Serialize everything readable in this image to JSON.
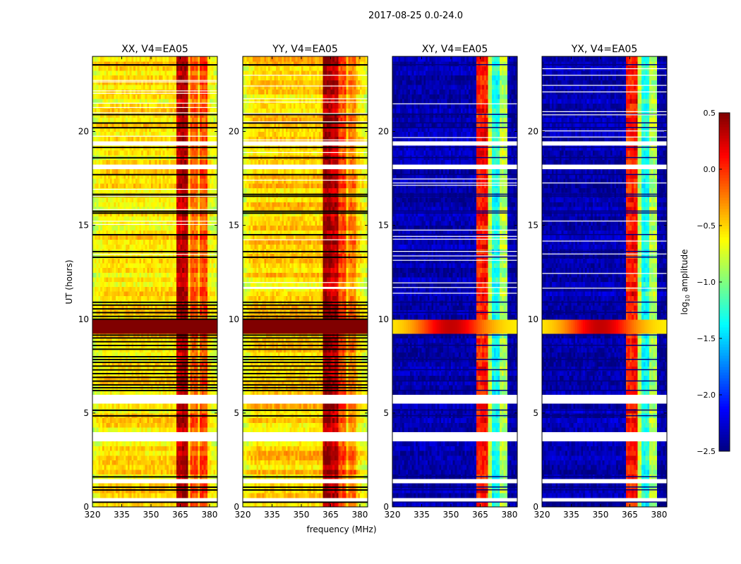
{
  "chart_data": {
    "type": "heatmap",
    "title": "2017-08-25 0.0-24.0",
    "xlabel": "frequency (MHz)",
    "ylabel": "UT (hours)",
    "xlim": [
      320,
      384
    ],
    "ylim": [
      0,
      24
    ],
    "xticks": [
      320,
      335,
      350,
      365,
      380
    ],
    "yticks": [
      0,
      5,
      10,
      15,
      20
    ],
    "colorbar": {
      "label_main": "log",
      "label_sub": "10",
      "label_rest": " amplitude",
      "range": [
        -2.5,
        0.5
      ],
      "ticks": [
        0.5,
        0.0,
        -0.5,
        -1.0,
        -1.5,
        -2.0,
        -2.5
      ],
      "tick_labels": [
        "0.5",
        "0.0",
        "−0.5",
        "−1.0",
        "−1.5",
        "−2.0",
        "−2.5"
      ],
      "colormap": "jet"
    },
    "flagged_hours_white": [
      [
        0.35,
        0.5
      ],
      [
        1.25,
        1.45
      ],
      [
        3.4,
        4.05
      ],
      [
        5.4,
        6.08
      ],
      [
        18.1,
        18.3
      ],
      [
        19.3,
        19.45
      ]
    ],
    "zero_rows_hours_black": [
      0.25,
      0.9,
      1.05,
      1.6,
      4.85,
      5.15,
      6.2,
      6.35,
      6.5,
      6.7,
      6.9,
      7.1,
      7.3,
      7.5,
      7.7,
      7.85,
      8.0,
      8.4,
      8.6,
      8.8,
      9.0,
      9.15,
      10.0,
      10.15,
      10.35,
      10.55,
      10.75,
      10.9,
      13.3,
      13.6,
      14.5,
      15.65,
      15.75,
      16.55,
      16.65,
      17.7,
      18.6,
      19.15,
      20.2,
      20.45,
      20.9,
      23.55
    ],
    "event_hours": [
      9.25,
      9.9
    ],
    "panels": [
      {
        "title": "XX, V4=EA05",
        "base": -0.55,
        "edge": -0.75,
        "bands": [
          {
            "from": 363,
            "to": 365.5,
            "value": 0.3
          },
          {
            "from": 366,
            "to": 368.5,
            "value": 0.35
          },
          {
            "from": 370,
            "to": 374,
            "value": -0.15
          },
          {
            "from": 375,
            "to": 379,
            "value": -0.1
          }
        ],
        "event_value": 0.45
      },
      {
        "title": "YY, V4=EA05",
        "base": -0.5,
        "edge": -0.75,
        "bands": [
          {
            "from": 361,
            "to": 364.5,
            "value": 0.4
          },
          {
            "from": 365,
            "to": 369,
            "value": 0.3
          },
          {
            "from": 369.5,
            "to": 373,
            "value": -0.1
          },
          {
            "from": 374,
            "to": 378,
            "value": -0.25
          }
        ],
        "event_value": 0.45
      },
      {
        "title": "XY, V4=EA05",
        "base": -2.35,
        "edge": -2.4,
        "bands": [
          {
            "from": 363,
            "to": 365.5,
            "value": 0.05
          },
          {
            "from": 366,
            "to": 368.5,
            "value": 0.1
          },
          {
            "from": 369,
            "to": 371,
            "value": -0.8
          },
          {
            "from": 371.5,
            "to": 374.5,
            "value": -1.3
          },
          {
            "from": 375,
            "to": 379,
            "value": -0.85
          }
        ],
        "event_value": -0.6
      },
      {
        "title": "YX, V4=EA05",
        "base": -2.35,
        "edge": -2.4,
        "bands": [
          {
            "from": 363,
            "to": 365.5,
            "value": 0.05
          },
          {
            "from": 366,
            "to": 368.5,
            "value": 0.1
          },
          {
            "from": 369,
            "to": 371,
            "value": -0.8
          },
          {
            "from": 371.5,
            "to": 374.5,
            "value": -1.3
          },
          {
            "from": 375,
            "to": 379,
            "value": -0.85
          }
        ],
        "event_value": -0.6
      }
    ]
  }
}
